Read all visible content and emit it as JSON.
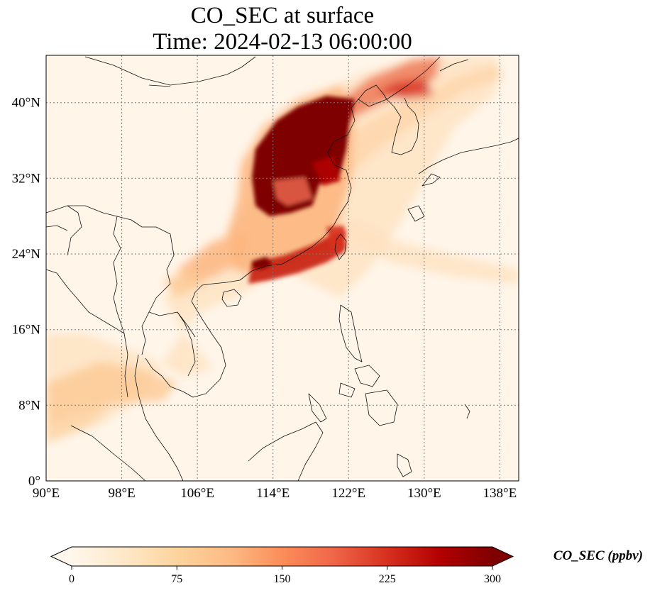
{
  "title": {
    "line1": "CO_SEC at surface",
    "line2": "Time: 2024-02-13 06:00:00"
  },
  "map": {
    "lon_range": [
      90,
      140
    ],
    "lat_range": [
      0,
      45
    ],
    "lon_ticks": [
      "90°E",
      "98°E",
      "106°E",
      "114°E",
      "122°E",
      "130°E",
      "138°E"
    ],
    "lat_ticks": [
      "0°",
      "8°N",
      "16°N",
      "24°N",
      "32°N",
      "40°N"
    ],
    "gridlines": true,
    "gridline_style": "dotted"
  },
  "colorbar": {
    "label": "CO_SEC (ppbv)",
    "ticks": [
      "0",
      "75",
      "150",
      "225",
      "300"
    ],
    "range": [
      0,
      300
    ],
    "colormap": "OrRd",
    "extend": "both",
    "colors": [
      "#fff7ec",
      "#fee8c8",
      "#fdd49e",
      "#fdbb84",
      "#fc8d59",
      "#ef6548",
      "#d7301f",
      "#b30000",
      "#7f0000"
    ]
  }
}
